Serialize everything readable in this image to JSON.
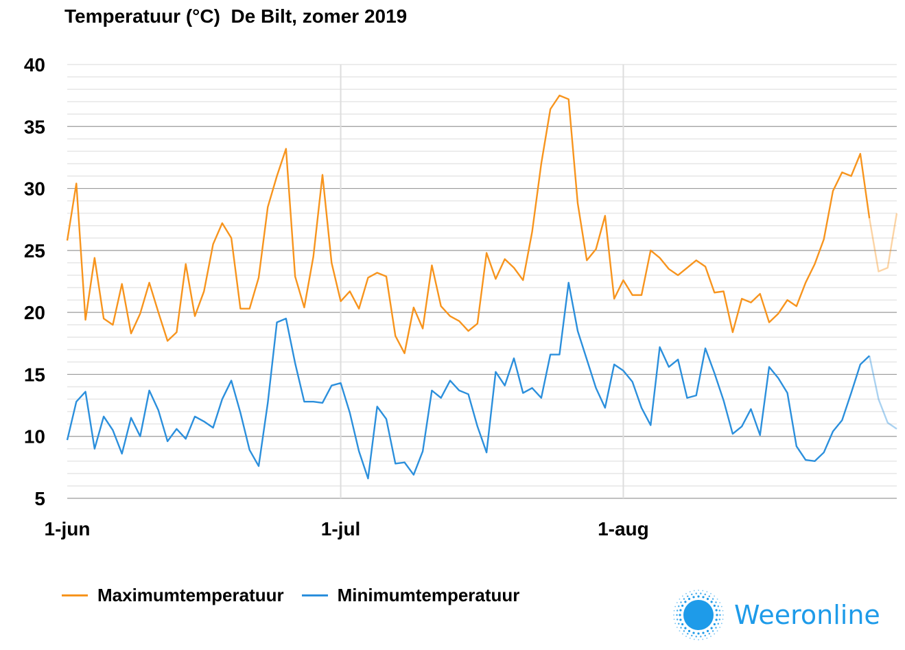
{
  "colors": {
    "max": "#f7941d",
    "min": "#2b8fdc",
    "brand": "#1e9be9",
    "grid_major": "#9a9a9a",
    "grid_minor": "#e6e6e6",
    "month_line": "#dddddd"
  },
  "icons": {
    "logo": "sun-icon"
  },
  "logo": {
    "text": "Weeronline"
  },
  "chart_data": {
    "type": "line",
    "title": "Temperatuur (°C)  De Bilt, zomer 2019",
    "xlabel": "",
    "ylabel": "",
    "ylim": [
      5,
      40
    ],
    "yticks": [
      "5",
      "10",
      "15",
      "20",
      "25",
      "30",
      "35",
      "40"
    ],
    "xticks": [
      {
        "label": "1-jun",
        "date": "2019-06-01"
      },
      {
        "label": "1-jul",
        "date": "2019-07-01"
      },
      {
        "label": "1-aug",
        "date": "2019-08-01"
      }
    ],
    "x_range": [
      "2019-06-01",
      "2019-08-31"
    ],
    "grid": true,
    "legend_position": "bottom-left",
    "forecast_from": "2019-08-28",
    "series": [
      {
        "name": "Maximumtemperatuur",
        "start_date": "2019-06-01",
        "values": [
          25.8,
          30.4,
          19.4,
          24.4,
          19.5,
          19.0,
          22.3,
          18.3,
          19.9,
          22.4,
          20.0,
          17.7,
          18.4,
          23.9,
          19.7,
          21.7,
          25.5,
          27.2,
          26.0,
          20.3,
          20.3,
          22.8,
          28.5,
          31.0,
          33.2,
          22.9,
          20.4,
          24.5,
          31.1,
          24.0,
          20.9,
          21.7,
          20.3,
          22.8,
          23.2,
          22.9,
          18.1,
          16.7,
          20.4,
          18.7,
          23.8,
          20.5,
          19.7,
          19.3,
          18.5,
          19.1,
          24.8,
          22.7,
          24.3,
          23.6,
          22.6,
          26.5,
          32.0,
          36.4,
          37.5,
          37.2,
          28.8,
          24.2,
          25.1,
          27.8,
          21.1,
          22.6,
          21.4,
          21.4,
          25.0,
          24.4,
          23.5,
          23.0,
          23.6,
          24.2,
          23.7,
          21.6,
          21.7,
          18.4,
          21.1,
          20.8,
          21.5,
          19.2,
          19.9,
          21.0,
          20.5,
          22.4,
          23.9,
          25.9,
          29.8,
          31.3,
          31.0,
          32.8,
          27.6,
          23.3,
          23.6,
          28.0
        ]
      },
      {
        "name": "Minimumtemperatuur",
        "start_date": "2019-06-01",
        "values": [
          9.7,
          12.8,
          13.6,
          9.0,
          11.6,
          10.5,
          8.6,
          11.5,
          10.0,
          13.7,
          12.1,
          9.6,
          10.6,
          9.8,
          11.6,
          11.2,
          10.7,
          13.0,
          14.5,
          11.9,
          8.9,
          7.6,
          12.7,
          19.2,
          19.5,
          15.9,
          12.8,
          12.8,
          12.7,
          14.1,
          14.3,
          11.9,
          8.8,
          6.6,
          12.4,
          11.4,
          7.8,
          7.9,
          6.9,
          8.8,
          13.7,
          13.1,
          14.5,
          13.7,
          13.4,
          10.8,
          8.7,
          15.2,
          14.1,
          16.3,
          13.5,
          13.9,
          13.1,
          16.6,
          16.6,
          22.4,
          18.5,
          16.2,
          13.9,
          12.3,
          15.8,
          15.3,
          14.4,
          12.3,
          10.9,
          17.2,
          15.6,
          16.2,
          13.1,
          13.3,
          17.1,
          15.1,
          12.9,
          10.2,
          10.8,
          12.2,
          10.1,
          15.6,
          14.7,
          13.5,
          9.2,
          8.1,
          8.0,
          8.7,
          10.4,
          11.3,
          13.5,
          15.8,
          16.5,
          13.0,
          11.1,
          10.6
        ]
      }
    ]
  }
}
